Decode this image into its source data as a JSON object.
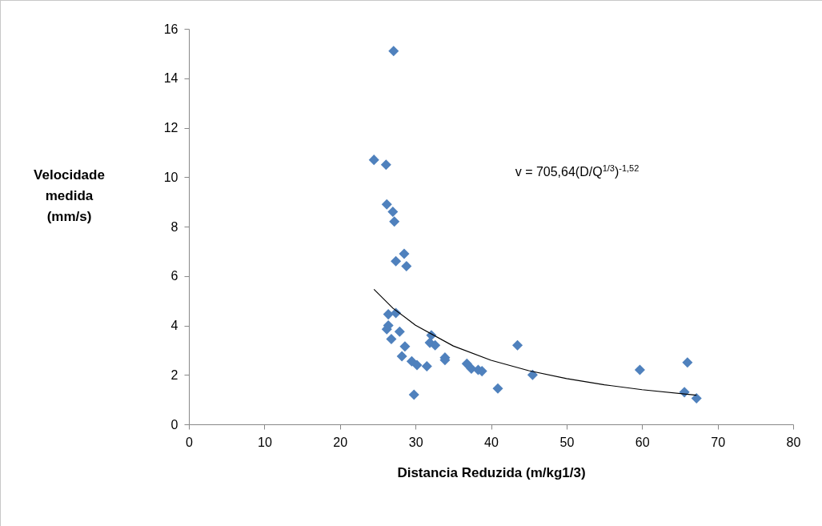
{
  "chart_data": {
    "type": "scatter",
    "xlabel": "Distancia Reduzida (m/kg1/3)",
    "ylabel": "Velocidade medida (mm/s)",
    "annotations": [
      "v = 705,64(D/Q$^{1/3}$)$^{-1,52}$"
    ],
    "xlim": [
      0,
      80
    ],
    "xticks": [
      0,
      10,
      20,
      30,
      40,
      50,
      60,
      70,
      80
    ],
    "ylim": [
      0,
      16
    ],
    "yticks": [
      0,
      2,
      4,
      6,
      8,
      10,
      12,
      14,
      16
    ],
    "grid": false,
    "marker": "diamond",
    "series": [
      {
        "color": "#4f81bd",
        "x": [
          27.1,
          24.5,
          26.1,
          26.2,
          27.0,
          27.2,
          28.5,
          27.4,
          28.8,
          26.4,
          27.4,
          26.4,
          26.2,
          27.9,
          26.8,
          28.6,
          28.2,
          29.5,
          30.2,
          31.5,
          29.8,
          32.1,
          31.9,
          32.6,
          33.9,
          33.9,
          36.8,
          37.4,
          38.3,
          38.8,
          40.9,
          43.5,
          45.5,
          59.7,
          66.0,
          65.6,
          67.2
        ],
        "values": [
          15.1,
          10.7,
          10.5,
          8.9,
          8.6,
          8.2,
          6.9,
          6.6,
          6.4,
          4.45,
          4.5,
          4.0,
          3.85,
          3.75,
          3.45,
          3.15,
          2.75,
          2.55,
          2.4,
          2.35,
          1.2,
          3.6,
          3.3,
          3.2,
          2.7,
          2.6,
          2.45,
          2.25,
          2.2,
          2.15,
          1.45,
          3.2,
          2.0,
          2.2,
          2.5,
          1.3,
          1.05
        ]
      },
      {
        "type": "line",
        "color": "#000000",
        "line_style": "solid",
        "marker": "none",
        "x": [
          24.5,
          27,
          30,
          35,
          40,
          45,
          50,
          55,
          60,
          67.2
        ],
        "values": [
          5.46,
          4.7,
          4.01,
          3.17,
          2.59,
          2.17,
          1.85,
          1.6,
          1.4,
          1.18
        ]
      }
    ]
  }
}
